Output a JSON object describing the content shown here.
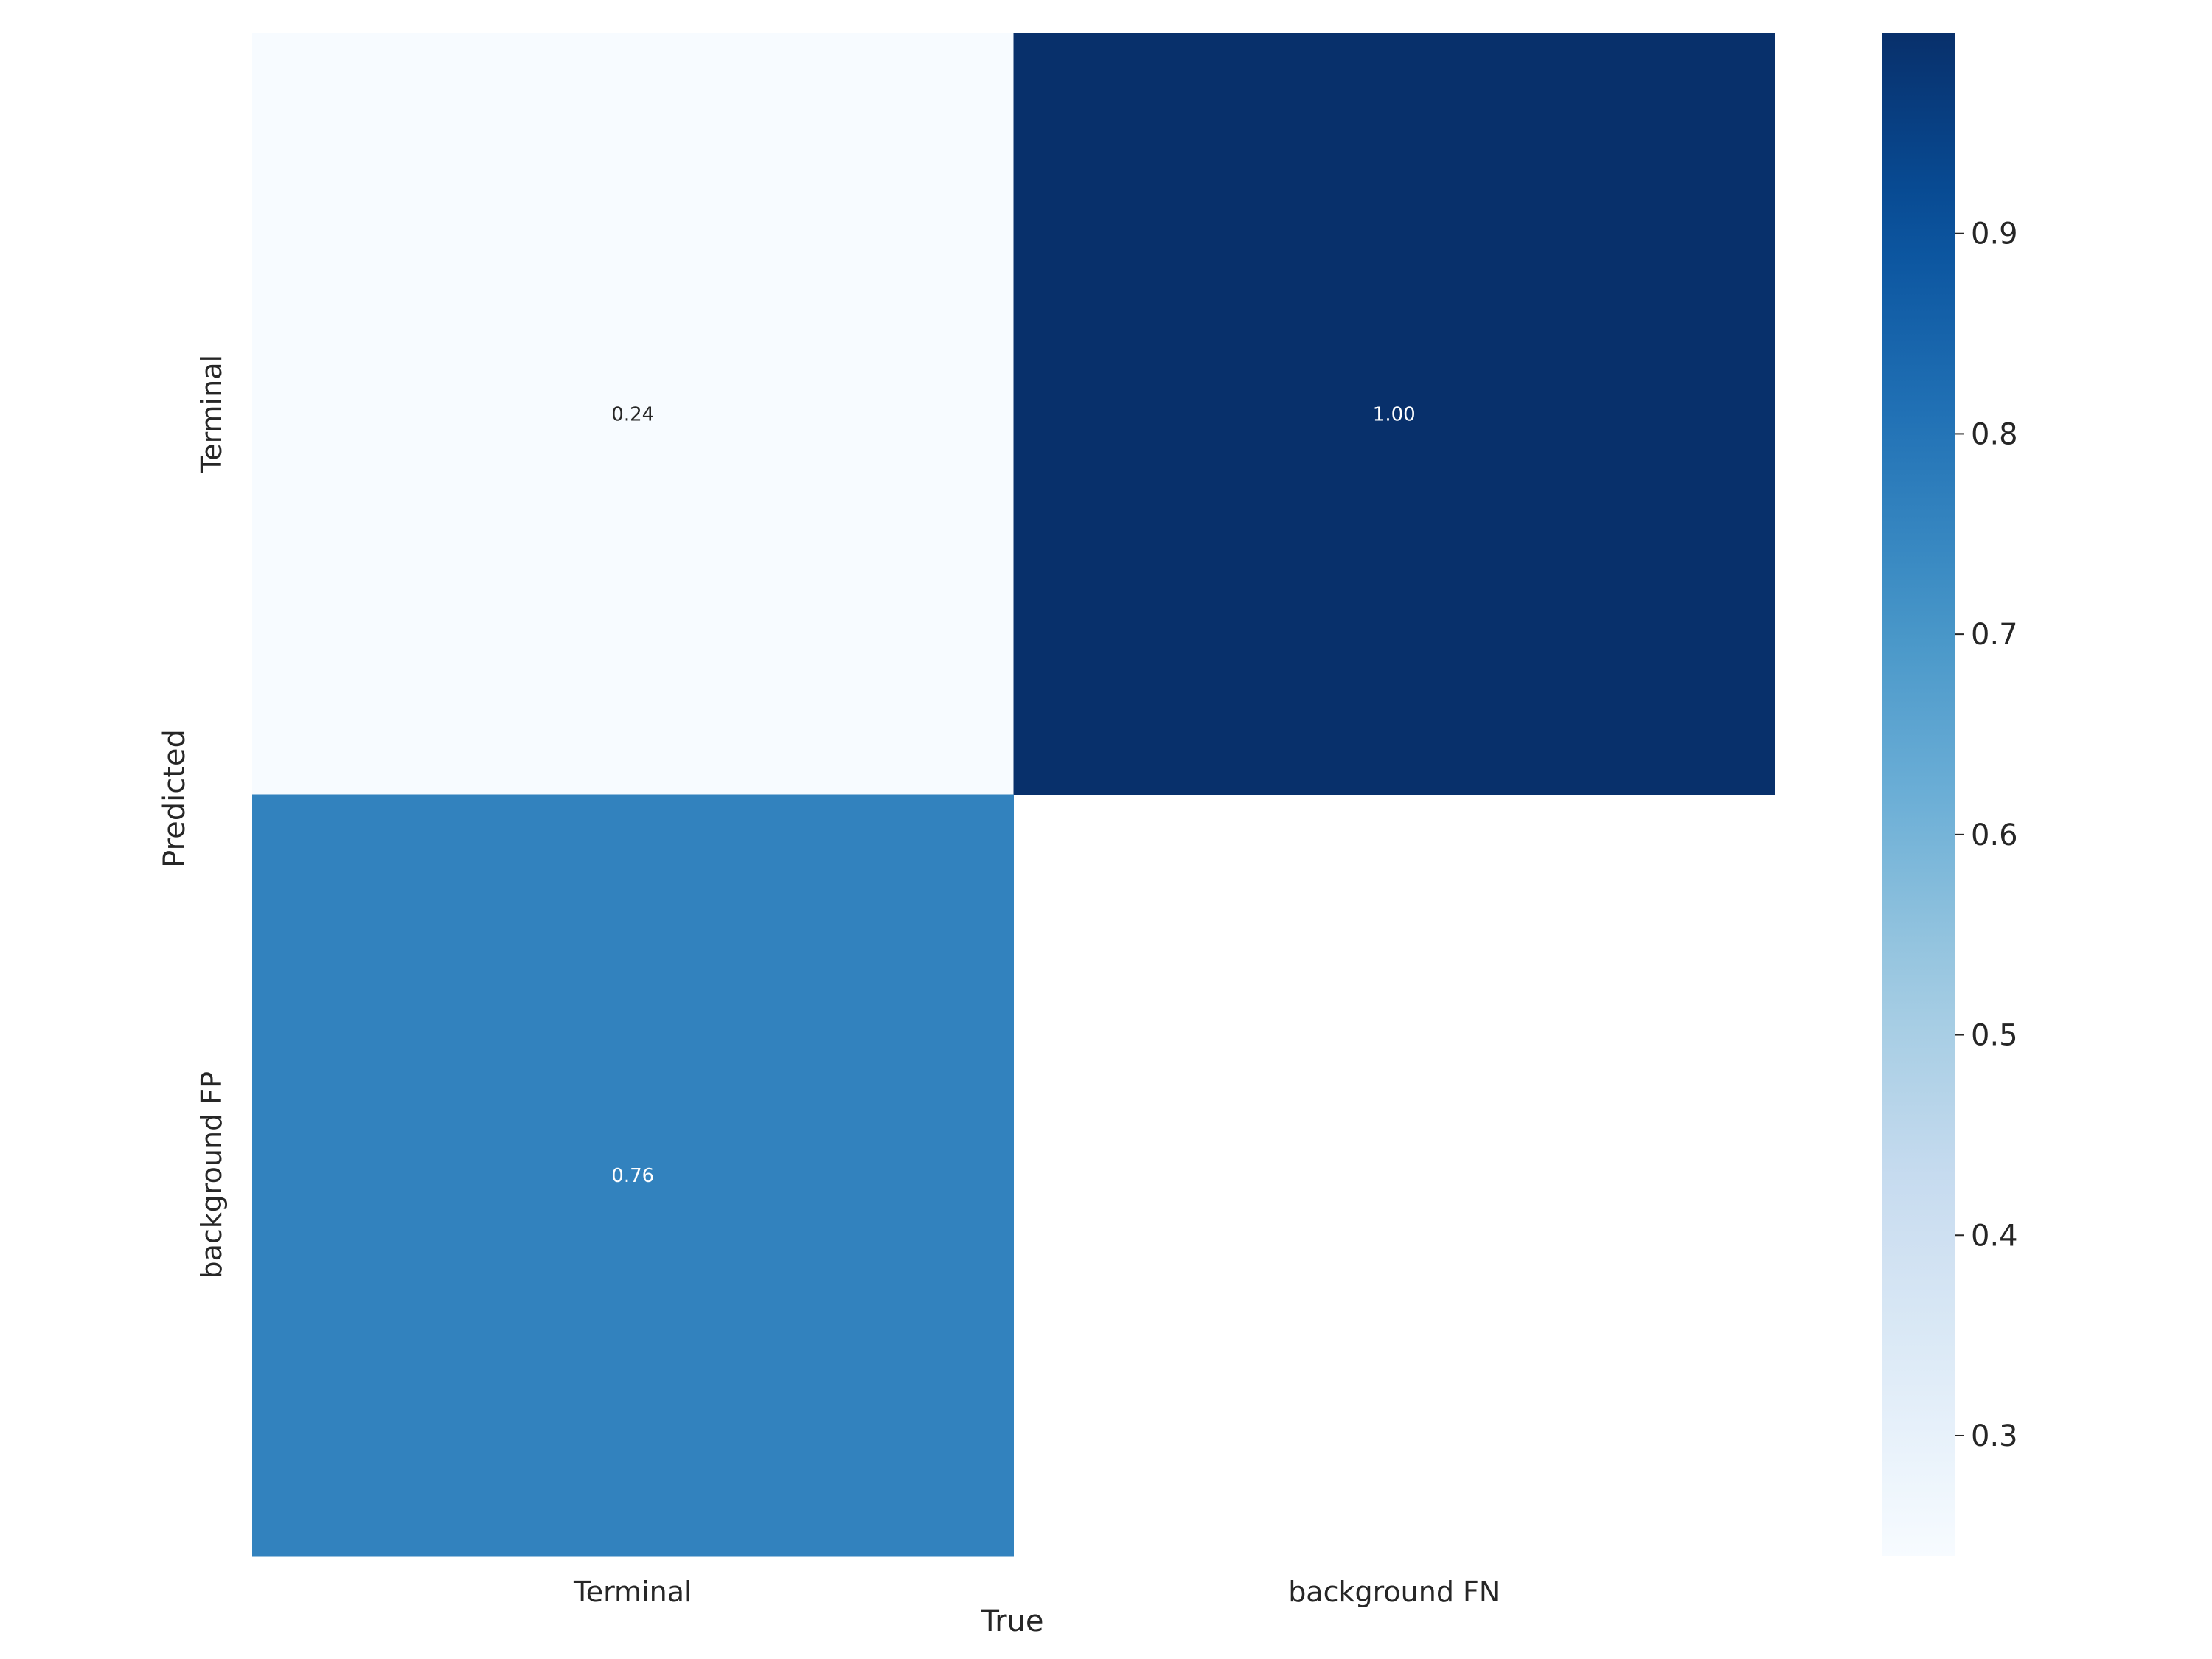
{
  "chart_data": {
    "type": "heatmap",
    "title": "",
    "xlabel": "True",
    "ylabel": "Predicted",
    "x_categories": [
      "Terminal",
      "background FN"
    ],
    "y_categories": [
      "Terminal",
      "background FP"
    ],
    "values": [
      [
        0.24,
        1.0
      ],
      [
        0.76,
        null
      ]
    ],
    "value_labels": [
      [
        "0.24",
        "1.00"
      ],
      [
        "0.76",
        ""
      ]
    ],
    "colormap": "Blues",
    "colorbar": {
      "range": [
        0.24,
        1.0
      ],
      "ticks": [
        0.3,
        0.4,
        0.5,
        0.6,
        0.7,
        0.8,
        0.9
      ],
      "tick_labels": [
        "0.3",
        "0.4",
        "0.5",
        "0.6",
        "0.7",
        "0.8",
        "0.9"
      ]
    },
    "grid": false,
    "colors": {
      "low": "#f7fbff",
      "high": "#08306b",
      "text_dark": "#262626",
      "text_light": "#ffffff"
    }
  }
}
